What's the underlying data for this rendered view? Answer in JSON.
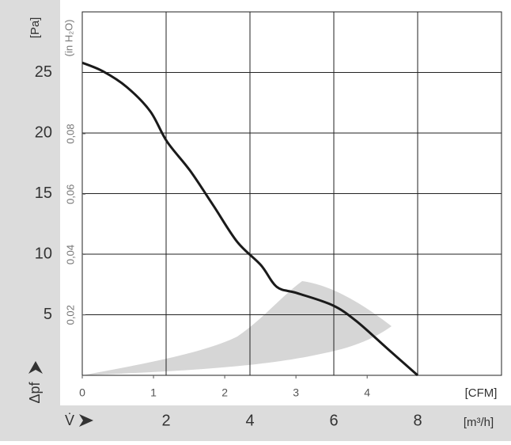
{
  "chart_data": {
    "type": "line",
    "ylabel": "[Pa]",
    "y2label": "(in H₂O)",
    "ysymbol": "Δpf",
    "xlabel": "[m³/h]",
    "x2label": "[CFM]",
    "xsymbol": "V̇",
    "xlim": [
      0,
      10
    ],
    "xticks": [
      2,
      4,
      6,
      8
    ],
    "x2lim": [
      0,
      5.886
    ],
    "x2ticks": [
      0,
      1,
      2,
      3,
      4
    ],
    "ylim": [
      0,
      30
    ],
    "yticks": [
      5,
      10,
      15,
      20,
      25
    ],
    "y2lim": [
      0,
      0.1204
    ],
    "y2ticks": [
      {
        "value": 0.02,
        "label": "0,02"
      },
      {
        "value": 0.04,
        "label": "0,04"
      },
      {
        "value": 0.06,
        "label": "0,06"
      },
      {
        "value": 0.08,
        "label": "0,08"
      }
    ],
    "grid": true,
    "x": [
      0,
      0.49,
      1.06,
      1.62,
      2.02,
      2.57,
      3.13,
      3.7,
      4.26,
      4.64,
      5.11,
      5.96,
      6.53,
      7.28,
      8.0
    ],
    "series": [
      {
        "color": "#1a1a1a",
        "values": [
          25.8,
          25.1,
          23.8,
          21.8,
          19.3,
          16.9,
          14.0,
          11.0,
          9.1,
          7.3,
          6.8,
          5.8,
          4.5,
          2.2,
          0
        ]
      }
    ]
  }
}
